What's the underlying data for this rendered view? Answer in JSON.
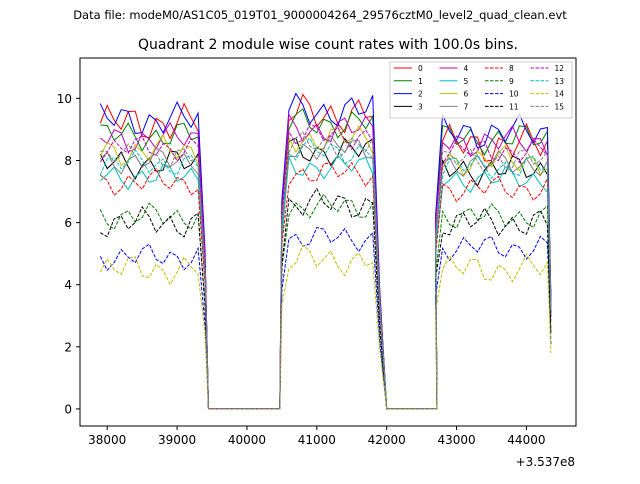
{
  "suptitle": "Data file: modeM0/AS1C05_019T01_9000004264_29576cztM0_level2_quad_clean.evt",
  "chart_data": {
    "type": "line",
    "title": "Quadrant 2 module wise count rates with 100.0s bins.",
    "xlabel": "",
    "ylabel": "",
    "x_offset_label": "+3.537e8",
    "xlim": [
      37610,
      44710
    ],
    "ylim": [
      -0.55,
      11.3
    ],
    "xticks": [
      38000,
      39000,
      40000,
      41000,
      42000,
      43000,
      44000
    ],
    "xtick_labels": [
      "38000",
      "39000",
      "40000",
      "41000",
      "42000",
      "43000",
      "44000"
    ],
    "yticks": [
      0,
      2,
      4,
      6,
      8,
      10
    ],
    "ytick_labels": [
      "0",
      "2",
      "4",
      "6",
      "8",
      "10"
    ],
    "legend_position": "top-right",
    "segments": [
      [
        37900,
        38000,
        38100,
        38200,
        38300,
        38400,
        38500,
        38600,
        38700,
        38800,
        38900,
        39000,
        39100,
        39200,
        39300,
        39400
      ],
      [
        40500,
        40600,
        40700,
        40800,
        40900,
        41000,
        41100,
        41200,
        41300,
        41400,
        41500,
        41600,
        41700,
        41800,
        41900
      ],
      [
        42700,
        42800,
        42900,
        43000,
        43100,
        43200,
        43300,
        43400,
        43500,
        43600,
        43700,
        43800,
        43900,
        44000,
        44100,
        44200,
        44300,
        44350
      ]
    ],
    "zero_runs": [
      [
        39450,
        40470
      ],
      [
        42000,
        42720
      ]
    ],
    "series": [
      {
        "name": "0",
        "color": "#ff0000",
        "dash": false,
        "levels": [
          9.2,
          9.5,
          8.5
        ],
        "amp": 0.45
      },
      {
        "name": "1",
        "color": "#008000",
        "dash": false,
        "levels": [
          8.8,
          9.2,
          8.7
        ],
        "amp": 0.35
      },
      {
        "name": "2",
        "color": "#0000ff",
        "dash": false,
        "levels": [
          9.3,
          9.6,
          8.9
        ],
        "amp": 0.4
      },
      {
        "name": "3",
        "color": "#000000",
        "dash": false,
        "levels": [
          7.9,
          8.3,
          7.7
        ],
        "amp": 0.35
      },
      {
        "name": "4",
        "color": "#bf00bf",
        "dash": false,
        "levels": [
          8.7,
          9.0,
          8.6
        ],
        "amp": 0.35
      },
      {
        "name": "5",
        "color": "#00bfbf",
        "dash": false,
        "levels": [
          7.5,
          7.8,
          7.4
        ],
        "amp": 0.3
      },
      {
        "name": "6",
        "color": "#bfbf00",
        "dash": false,
        "levels": [
          8.3,
          8.7,
          8.0
        ],
        "amp": 0.35
      },
      {
        "name": "7",
        "color": "#7f7f7f",
        "dash": false,
        "levels": [
          8.0,
          8.4,
          7.9
        ],
        "amp": 0.3
      },
      {
        "name": "8",
        "color": "#ff0000",
        "dash": true,
        "levels": [
          7.3,
          7.6,
          7.1
        ],
        "amp": 0.3
      },
      {
        "name": "9",
        "color": "#008000",
        "dash": true,
        "levels": [
          6.2,
          6.5,
          6.2
        ],
        "amp": 0.3
      },
      {
        "name": "10",
        "color": "#0000ff",
        "dash": true,
        "levels": [
          4.9,
          5.5,
          5.2
        ],
        "amp": 0.3
      },
      {
        "name": "11",
        "color": "#000000",
        "dash": true,
        "levels": [
          6.0,
          6.6,
          6.0
        ],
        "amp": 0.35
      },
      {
        "name": "12",
        "color": "#bf00bf",
        "dash": true,
        "levels": [
          8.4,
          8.8,
          8.3
        ],
        "amp": 0.3
      },
      {
        "name": "13",
        "color": "#00bfbf",
        "dash": true,
        "levels": [
          7.9,
          8.3,
          7.8
        ],
        "amp": 0.3
      },
      {
        "name": "14",
        "color": "#bfbf00",
        "dash": true,
        "levels": [
          4.5,
          4.8,
          4.5
        ],
        "amp": 0.35
      },
      {
        "name": "15",
        "color": "#7f7f7f",
        "dash": true,
        "levels": [
          8.1,
          8.5,
          8.0
        ],
        "amp": 0.3
      }
    ]
  }
}
